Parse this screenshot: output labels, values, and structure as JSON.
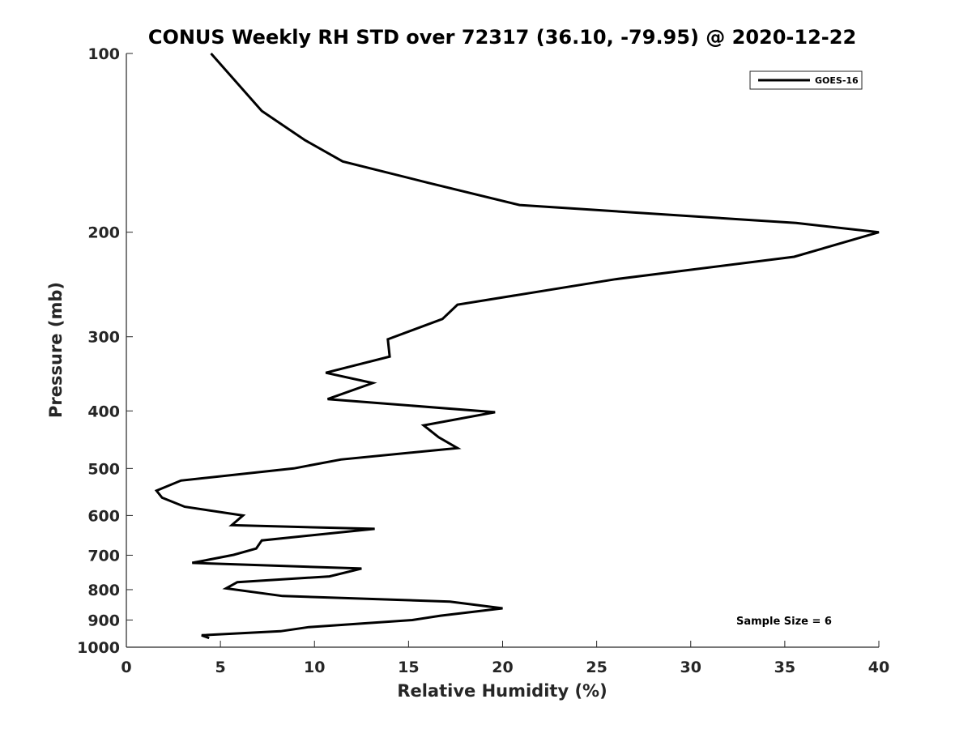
{
  "chart_data": {
    "type": "line",
    "title": "CONUS Weekly RH STD over 72317 (36.10, -79.95) @ 2020-12-22",
    "xlabel": "Relative Humidity (%)",
    "ylabel": "Pressure (mb)",
    "xlim": [
      0,
      40
    ],
    "ylim": [
      100,
      1000
    ],
    "y_scale": "log",
    "y_reversed": true,
    "x_ticks": [
      0,
      5,
      10,
      15,
      20,
      25,
      30,
      35,
      40
    ],
    "x_tick_labels": [
      "0",
      "5",
      "10",
      "15",
      "20",
      "25",
      "30",
      "35",
      "40"
    ],
    "y_ticks": [
      100,
      200,
      300,
      400,
      500,
      600,
      700,
      800,
      900,
      1000
    ],
    "y_tick_labels": [
      "100",
      "200",
      "300",
      "400",
      "500",
      "600",
      "700",
      "800",
      "900",
      "1000"
    ],
    "grid": false,
    "legend_position": "top-right",
    "annotation": "Sample Size = 6",
    "series": [
      {
        "name": "GOES-16",
        "color": "#000000",
        "points": [
          [
            4.5,
            100
          ],
          [
            7.2,
            125
          ],
          [
            9.5,
            140
          ],
          [
            11.5,
            152
          ],
          [
            16.0,
            165
          ],
          [
            20.9,
            180
          ],
          [
            35.6,
            193
          ],
          [
            40.0,
            200
          ],
          [
            35.5,
            220
          ],
          [
            26.0,
            240
          ],
          [
            17.6,
            265
          ],
          [
            16.8,
            280
          ],
          [
            13.9,
            303
          ],
          [
            14.0,
            324
          ],
          [
            10.6,
            345
          ],
          [
            13.1,
            359
          ],
          [
            10.7,
            382
          ],
          [
            19.6,
            402
          ],
          [
            15.8,
            423
          ],
          [
            16.6,
            443
          ],
          [
            17.6,
            462
          ],
          [
            11.4,
            483
          ],
          [
            8.9,
            500
          ],
          [
            2.9,
            524
          ],
          [
            1.6,
            545
          ],
          [
            1.9,
            560
          ],
          [
            3.1,
            580
          ],
          [
            6.2,
            600
          ],
          [
            5.6,
            623
          ],
          [
            13.2,
            632
          ],
          [
            7.2,
            661
          ],
          [
            6.9,
            682
          ],
          [
            5.7,
            699
          ],
          [
            3.5,
            721
          ],
          [
            12.5,
            737
          ],
          [
            10.8,
            760
          ],
          [
            5.9,
            777
          ],
          [
            5.3,
            796
          ],
          [
            8.3,
            820
          ],
          [
            17.2,
            838
          ],
          [
            20.0,
            860
          ],
          [
            16.7,
            885
          ],
          [
            15.2,
            900
          ],
          [
            9.7,
            925
          ],
          [
            8.2,
            940
          ],
          [
            4.0,
            955
          ],
          [
            4.4,
            965
          ]
        ]
      }
    ]
  }
}
